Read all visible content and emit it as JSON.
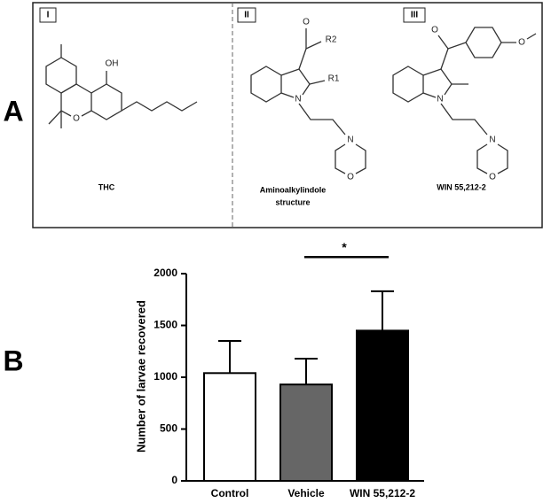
{
  "panel_a": {
    "label": "A",
    "structures": [
      {
        "numeral": "I",
        "name_lines": [
          "THC"
        ],
        "atoms": [
          "OH",
          "O"
        ]
      },
      {
        "numeral": "II",
        "name_lines": [
          "Aminoalkylindole",
          "structure"
        ],
        "atoms": [
          "O",
          "R2",
          "R1",
          "N",
          "N",
          "O"
        ]
      },
      {
        "numeral": "III",
        "name_lines": [
          "WIN 55,212-2"
        ],
        "atoms": [
          "O",
          "O",
          "N",
          "N",
          "O"
        ]
      }
    ]
  },
  "panel_b": {
    "label": "B"
  },
  "chart_data": {
    "type": "bar",
    "y_label": "Number of larvae recovered",
    "categories": [
      "Control",
      "Vehicle",
      "WIN 55,212-2"
    ],
    "values": [
      1040,
      930,
      1450
    ],
    "errors": [
      310,
      250,
      380
    ],
    "colors": [
      "#ffffff",
      "#666666",
      "#000000"
    ],
    "ylim": [
      0,
      2000
    ],
    "yticks": [
      0,
      500,
      1000,
      1500,
      2000
    ],
    "annotations": [
      {
        "text": "*",
        "from": 1,
        "to": 2,
        "y": 2160
      }
    ]
  }
}
